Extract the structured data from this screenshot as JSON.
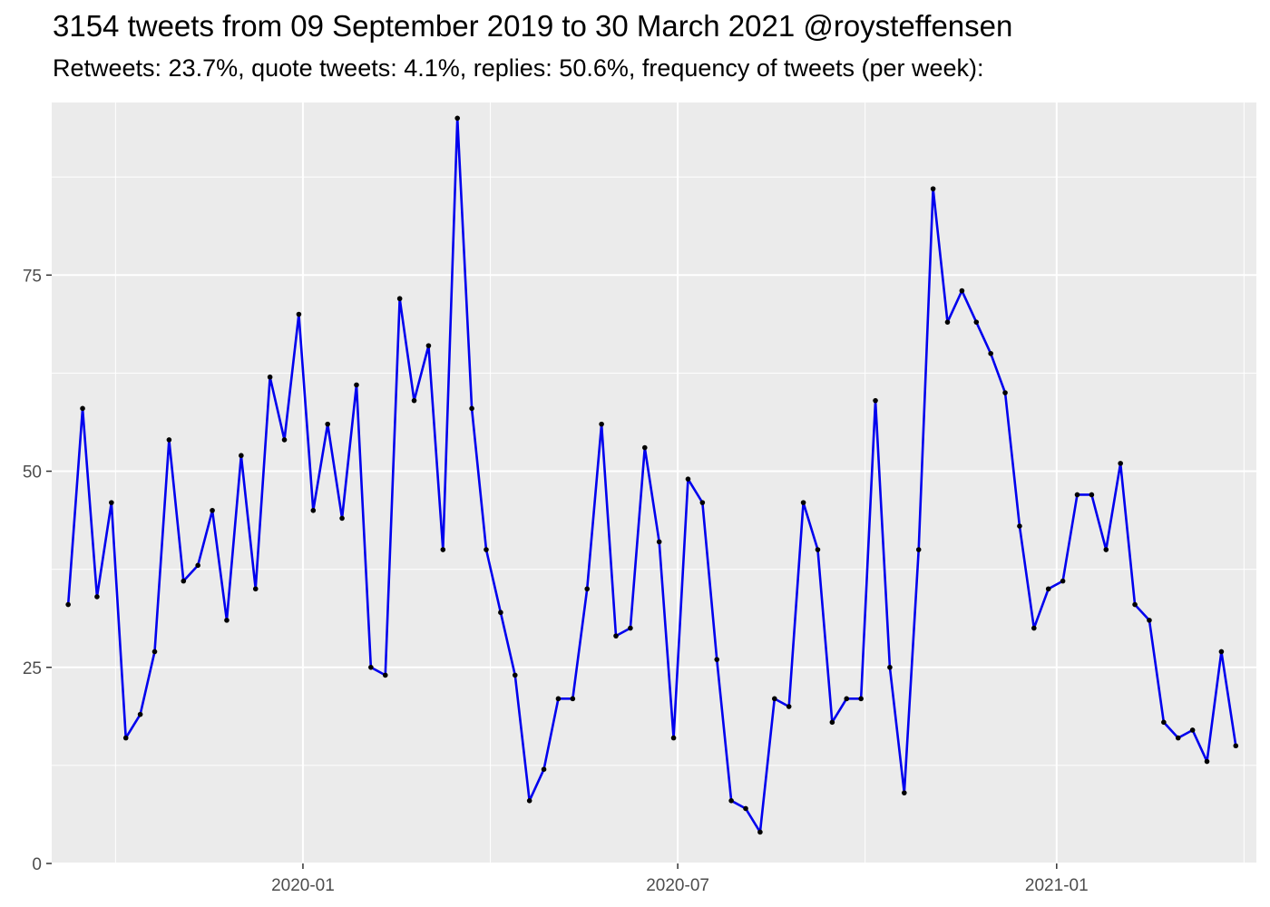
{
  "chart_data": {
    "type": "line",
    "title": "3154 tweets from 09 September 2019 to 30 March 2021 @roysteffensen",
    "subtitle": "Retweets: 23.7%, quote tweets: 4.1%, replies: 50.6%, frequency of tweets (per week):",
    "xlabel": "",
    "ylabel": "",
    "x_ticks": [
      "2020-01",
      "2020-07",
      "2021-01"
    ],
    "y_ticks": [
      0,
      25,
      50,
      75
    ],
    "ylim": [
      0,
      97
    ],
    "xlim": [
      "2019-09-01",
      "2021-04-08"
    ],
    "grid": true,
    "legend": "none",
    "colors": {
      "line": "#0000ee",
      "point": "#000000",
      "panel": "#ebebeb",
      "grid": "#ffffff"
    },
    "series": [
      {
        "x": [
          "2019-09-09",
          "2019-09-16",
          "2019-09-23",
          "2019-09-30",
          "2019-10-07",
          "2019-10-14",
          "2019-10-21",
          "2019-10-28",
          "2019-11-04",
          "2019-11-11",
          "2019-11-18",
          "2019-11-25",
          "2019-12-02",
          "2019-12-09",
          "2019-12-16",
          "2019-12-23",
          "2019-12-30",
          "2020-01-06",
          "2020-01-13",
          "2020-01-20",
          "2020-01-27",
          "2020-02-03",
          "2020-02-10",
          "2020-02-17",
          "2020-02-24",
          "2020-03-02",
          "2020-03-09",
          "2020-03-16",
          "2020-03-23",
          "2020-03-30",
          "2020-04-06",
          "2020-04-13",
          "2020-04-20",
          "2020-04-27",
          "2020-05-04",
          "2020-05-11",
          "2020-05-18",
          "2020-05-25",
          "2020-06-01",
          "2020-06-08",
          "2020-06-15",
          "2020-06-22",
          "2020-06-29",
          "2020-07-06",
          "2020-07-13",
          "2020-07-20",
          "2020-07-27",
          "2020-08-03",
          "2020-08-10",
          "2020-08-17",
          "2020-08-24",
          "2020-08-31",
          "2020-09-07",
          "2020-09-14",
          "2020-09-21",
          "2020-09-28",
          "2020-10-05",
          "2020-10-12",
          "2020-10-19",
          "2020-10-26",
          "2020-11-02",
          "2020-11-09",
          "2020-11-16",
          "2020-11-23",
          "2020-11-30",
          "2020-12-07",
          "2020-12-14",
          "2020-12-21",
          "2020-12-28",
          "2021-01-04",
          "2021-01-11",
          "2021-01-18",
          "2021-01-25",
          "2021-02-01",
          "2021-02-08",
          "2021-02-15",
          "2021-02-22",
          "2021-03-01",
          "2021-03-08",
          "2021-03-15",
          "2021-03-22",
          "2021-03-29"
        ],
        "values": [
          33,
          58,
          34,
          46,
          16,
          19,
          27,
          54,
          36,
          38,
          45,
          31,
          52,
          35,
          62,
          54,
          70,
          45,
          56,
          44,
          61,
          25,
          24,
          72,
          59,
          66,
          40,
          95,
          58,
          40,
          32,
          24,
          8,
          12,
          21,
          21,
          35,
          56,
          29,
          30,
          53,
          41,
          16,
          49,
          46,
          26,
          8,
          7,
          4,
          21,
          20,
          46,
          40,
          18,
          21,
          21,
          59,
          25,
          9,
          40,
          86,
          69,
          73,
          69,
          65,
          60,
          43,
          30,
          35,
          36,
          47,
          47,
          40,
          51,
          33,
          31,
          18,
          16,
          17,
          13,
          27,
          15
        ]
      }
    ]
  }
}
